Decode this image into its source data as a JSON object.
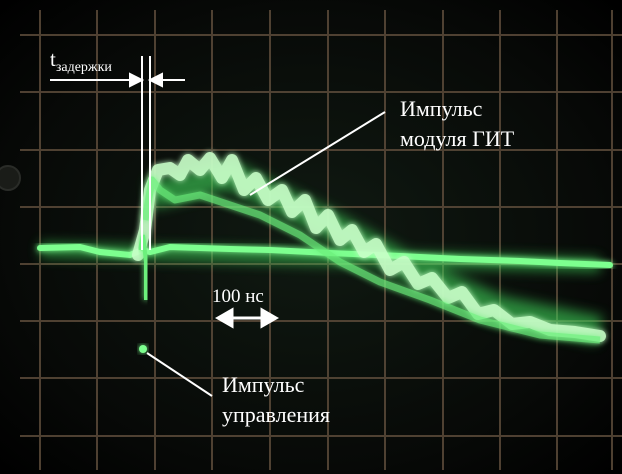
{
  "annotations": {
    "delay_main": "t",
    "delay_sub": "задержки",
    "git_pulse_line1": "Импульс",
    "git_pulse_line2": "модуля ГИТ",
    "time_scale": "100 нс",
    "control_pulse_line1": "Импульс",
    "control_pulse_line2": "управления"
  },
  "colors": {
    "trace": "#7dff8f",
    "grid": "#5a4a3a",
    "background": "#050505",
    "text": "#ffffff"
  }
}
